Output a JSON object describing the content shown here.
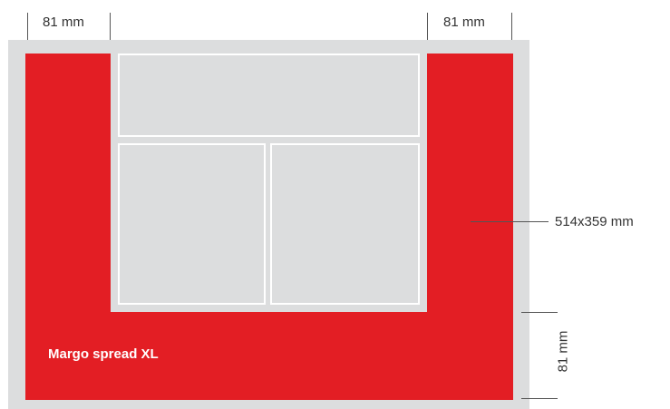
{
  "dimensions": {
    "margin_top_left": "81 mm",
    "margin_top_right": "81 mm",
    "spread_size": "514x359 mm",
    "margin_bottom": "81 mm"
  },
  "spread": {
    "label": "Margo spread XL"
  },
  "colors": {
    "red": "#e31e24",
    "sheet_gray": "#dcddde",
    "panel_border": "#ffffff"
  }
}
